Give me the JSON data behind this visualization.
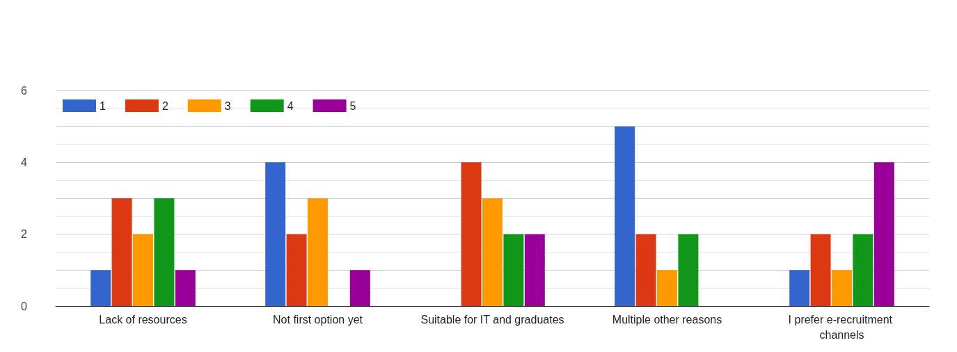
{
  "chart_data": {
    "type": "bar",
    "categories": [
      "Lack of resources",
      "Not first option yet",
      "Suitable for IT and graduates",
      "Multiple other reasons",
      "I prefer e-recruitment channels"
    ],
    "series": [
      {
        "name": "1",
        "color": "#3366cc",
        "values": [
          1,
          4,
          0,
          5,
          1
        ]
      },
      {
        "name": "2",
        "color": "#dc3912",
        "values": [
          3,
          2,
          4,
          2,
          2
        ]
      },
      {
        "name": "3",
        "color": "#ff9900",
        "values": [
          2,
          3,
          3,
          1,
          1
        ]
      },
      {
        "name": "4",
        "color": "#109618",
        "values": [
          3,
          0,
          2,
          2,
          2
        ]
      },
      {
        "name": "5",
        "color": "#990099",
        "values": [
          1,
          1,
          2,
          0,
          4
        ]
      }
    ],
    "ylim": [
      0,
      6
    ],
    "yticks": [
      0,
      2,
      4,
      6
    ],
    "grid": true,
    "legend": "top left"
  }
}
